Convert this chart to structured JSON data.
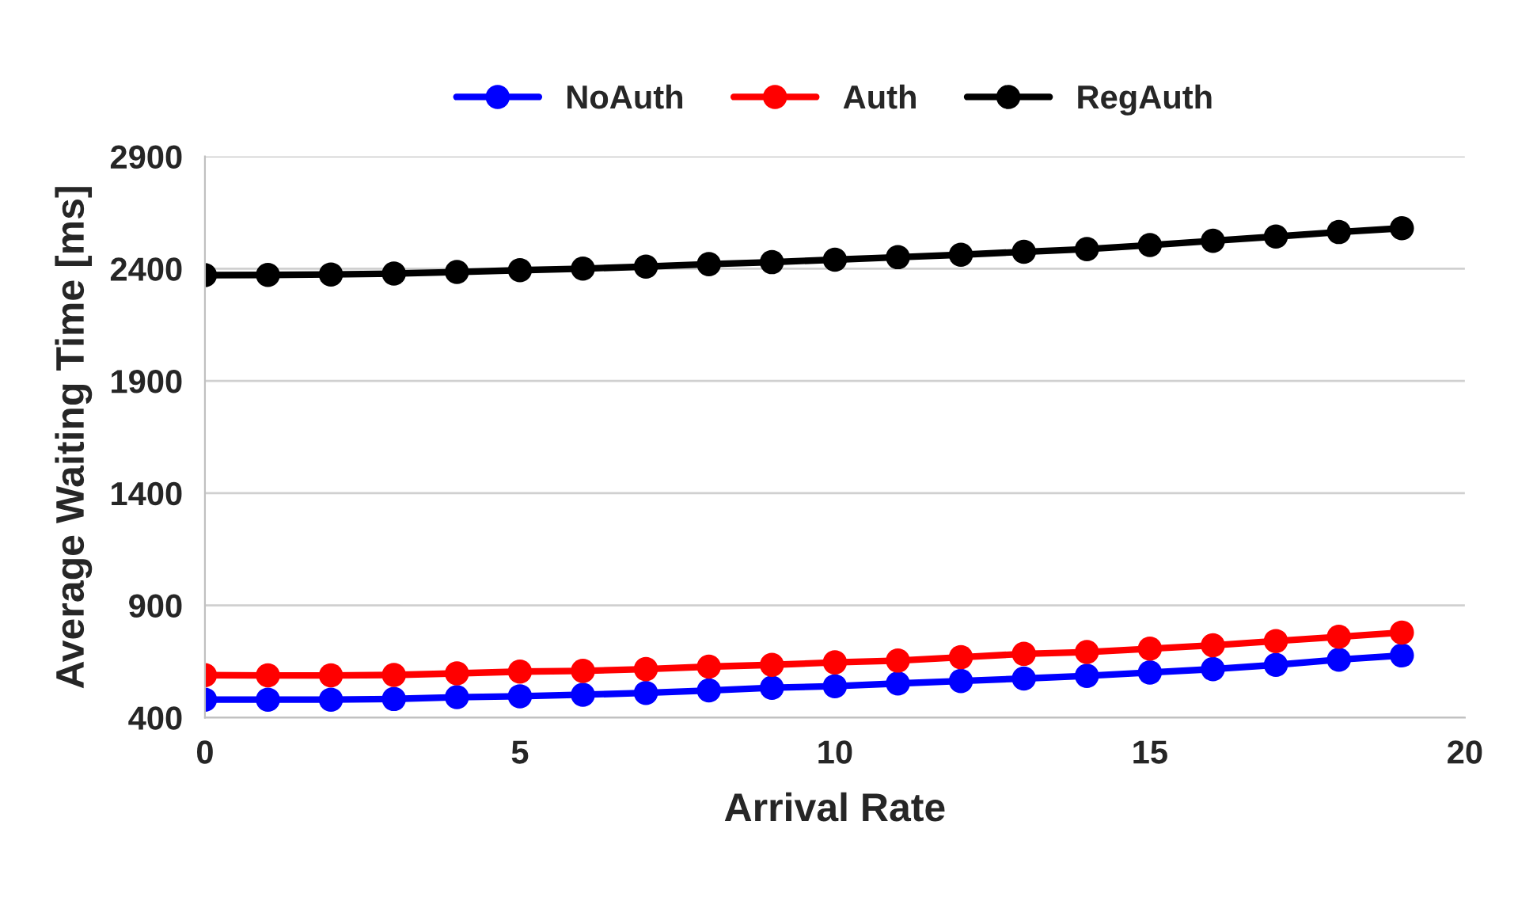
{
  "chart_data": {
    "type": "line",
    "xlabel": "Arrival Rate",
    "ylabel": "Average Waiting Time [ms]",
    "x": [
      0,
      1,
      2,
      3,
      4,
      5,
      6,
      7,
      8,
      9,
      10,
      11,
      12,
      13,
      14,
      15,
      16,
      17,
      18,
      19
    ],
    "series": [
      {
        "name": "NoAuth",
        "color": "#0000ff",
        "values": [
          480,
          480,
          480,
          483,
          491,
          495,
          502,
          510,
          521,
          533,
          540,
          552,
          563,
          574,
          586,
          601,
          616,
          635,
          658,
          677
        ]
      },
      {
        "name": "Auth",
        "color": "#ff0000",
        "values": [
          589,
          588,
          588,
          590,
          597,
          605,
          608,
          616,
          627,
          635,
          646,
          654,
          669,
          684,
          692,
          707,
          722,
          741,
          760,
          779
        ]
      },
      {
        "name": "RegAuth",
        "color": "#000000",
        "values": [
          2371,
          2372,
          2374,
          2378,
          2385,
          2393,
          2400,
          2409,
          2420,
          2429,
          2440,
          2451,
          2462,
          2475,
          2487,
          2505,
          2524,
          2543,
          2563,
          2580
        ]
      }
    ],
    "xlim": [
      0,
      20
    ],
    "xticks": [
      0,
      5,
      10,
      15,
      20
    ],
    "ylim": [
      400,
      2900
    ],
    "yticks": [
      400,
      900,
      1400,
      1900,
      2400,
      2900
    ],
    "grid": "y",
    "legend": "top",
    "marker": "circle",
    "line_style": "solid"
  }
}
